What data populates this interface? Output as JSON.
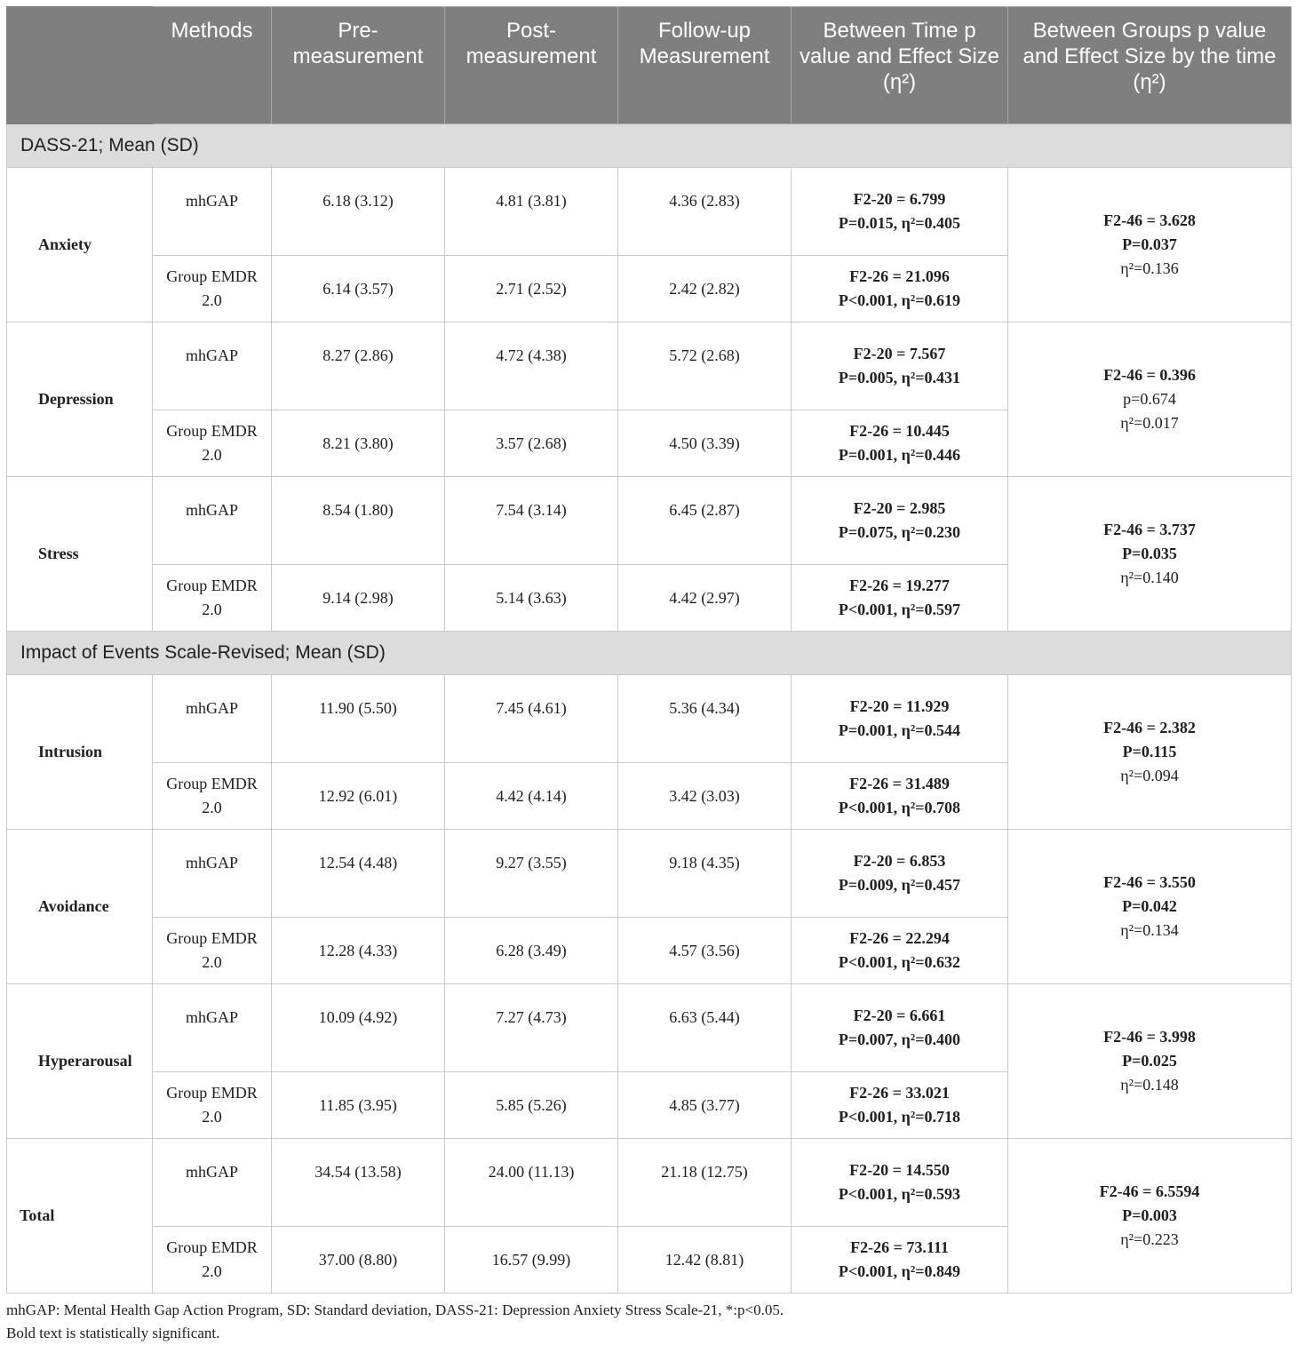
{
  "header": {
    "col0": "",
    "methods": "Methods",
    "pre": "Pre-measurement",
    "post": "Post-measurement",
    "follow": "Follow-up Measurement",
    "between_time": "Between Time p value and Effect Size (η²)",
    "between_groups": "Between Groups p value and Effect Size by the time (η²)"
  },
  "sections": [
    {
      "title": "DASS-21; Mean (SD)",
      "measures": [
        {
          "name": "Anxiety",
          "rows": [
            {
              "method": "mhGAP",
              "pre": "6.18 (3.12)",
              "post": "4.81 (3.81)",
              "follow": "4.36 (2.83)",
              "time_f": "F2-20 = 6.799",
              "time_p": "P=0.015, η²=0.405"
            },
            {
              "method": "Group EMDR 2.0",
              "pre": "6.14 (3.57)",
              "post": "2.71 (2.52)",
              "follow": "2.42 (2.82)",
              "time_f": "F2-26 = 21.096",
              "time_p": "P<0.001, η²=0.619"
            }
          ],
          "groups": {
            "f": "F2-46 = 3.628",
            "p": "P=0.037",
            "eta": "η²=0.136"
          }
        },
        {
          "name": "Depression",
          "rows": [
            {
              "method": "mhGAP",
              "pre": "8.27 (2.86)",
              "post": "4.72 (4.38)",
              "follow": "5.72 (2.68)",
              "time_f": "F2-20 = 7.567",
              "time_p": "P=0.005, η²=0.431"
            },
            {
              "method": "Group EMDR 2.0",
              "pre": "8.21 (3.80)",
              "post": "3.57 (2.68)",
              "follow": "4.50 (3.39)",
              "time_f": "F2-26 = 10.445",
              "time_p": "P=0.001, η²=0.446"
            }
          ],
          "groups": {
            "f": "F2-46 = 0.396",
            "p": "p=0.674",
            "eta": "η²=0.017"
          }
        },
        {
          "name": "Stress",
          "rows": [
            {
              "method": "mhGAP",
              "pre": "8.54 (1.80)",
              "post": "7.54 (3.14)",
              "follow": "6.45 (2.87)",
              "time_f": "F2-20 = 2.985",
              "time_p": "P=0.075, η²=0.230"
            },
            {
              "method": "Group EMDR 2.0",
              "pre": "9.14 (2.98)",
              "post": "5.14 (3.63)",
              "follow": "4.42 (2.97)",
              "time_f": "F2-26 = 19.277",
              "time_p": "P<0.001, η²=0.597"
            }
          ],
          "groups": {
            "f": "F2-46 = 3.737",
            "p": "P=0.035",
            "eta": "η²=0.140"
          }
        }
      ]
    },
    {
      "title": "Impact of Events Scale-Revised; Mean (SD)",
      "measures": [
        {
          "name": "Intrusion",
          "rows": [
            {
              "method": "mhGAP",
              "pre": "11.90 (5.50)",
              "post": "7.45 (4.61)",
              "follow": "5.36 (4.34)",
              "time_f": "F2-20 = 11.929",
              "time_p": "P=0.001, η²=0.544"
            },
            {
              "method": "Group EMDR 2.0",
              "pre": "12.92 (6.01)",
              "post": "4.42 (4.14)",
              "follow": "3.42 (3.03)",
              "time_f": "F2-26 = 31.489",
              "time_p": "P<0.001, η²=0.708"
            }
          ],
          "groups": {
            "f": "F2-46 = 2.382",
            "p": "P=0.115",
            "eta": "η²=0.094"
          }
        },
        {
          "name": "Avoidance",
          "rows": [
            {
              "method": "mhGAP",
              "pre": "12.54 (4.48)",
              "post": "9.27 (3.55)",
              "follow": "9.18 (4.35)",
              "time_f": "F2-20 = 6.853",
              "time_p": "P=0.009, η²=0.457"
            },
            {
              "method": "Group EMDR 2.0",
              "pre": "12.28 (4.33)",
              "post": "6.28 (3.49)",
              "follow": "4.57 (3.56)",
              "time_f": "F2-26 = 22.294",
              "time_p": "P<0.001, η²=0.632"
            }
          ],
          "groups": {
            "f": "F2-46 = 3.550",
            "p": "P=0.042",
            "eta": "η²=0.134"
          }
        },
        {
          "name": "Hyperarousal",
          "rows": [
            {
              "method": "mhGAP",
              "pre": "10.09 (4.92)",
              "post": "7.27 (4.73)",
              "follow": "6.63 (5.44)",
              "time_f": "F2-20 = 6.661",
              "time_p": "P=0.007, η²=0.400"
            },
            {
              "method": "Group EMDR 2.0",
              "pre": "11.85 (3.95)",
              "post": "5.85 (5.26)",
              "follow": "4.85 (3.77)",
              "time_f": "F2-26 = 33.021",
              "time_p": "P<0.001, η²=0.718"
            }
          ],
          "groups": {
            "f": "F2-46 = 3.998",
            "p": "P=0.025",
            "eta": "η²=0.148"
          }
        },
        {
          "name": "Total",
          "rows": [
            {
              "method": "mhGAP",
              "pre": "34.54 (13.58)",
              "post": "24.00 (11.13)",
              "follow": "21.18 (12.75)",
              "time_f": "F2-20 = 14.550",
              "time_p": "P<0.001, η²=0.593"
            },
            {
              "method": "Group EMDR 2.0",
              "pre": "37.00 (8.80)",
              "post": "16.57 (9.99)",
              "follow": "12.42 (8.81)",
              "time_f": "F2-26 = 73.111",
              "time_p": "P<0.001, η²=0.849"
            }
          ],
          "groups": {
            "f": "F2-46 = 6.5594",
            "p": "P=0.003",
            "eta": "η²=0.223"
          }
        }
      ]
    }
  ],
  "footnote": {
    "line1": "mhGAP: Mental Health Gap Action Program, SD: Standard deviation, DASS-21: Depression Anxiety Stress Scale-21, *:p<0.05.",
    "line2": "Bold text is statistically significant."
  }
}
